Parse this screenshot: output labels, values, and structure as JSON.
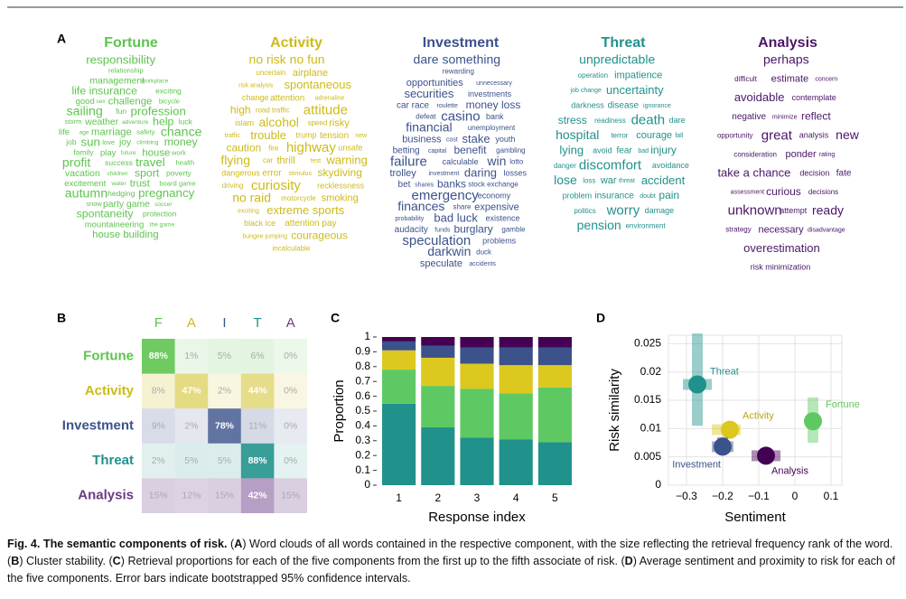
{
  "panel_labels": [
    "A",
    "B",
    "C",
    "D"
  ],
  "word_clouds": [
    {
      "title": "Fortune",
      "color": "#5ec44f",
      "words": [
        "responsibility",
        "relationship",
        "management",
        "workplace",
        "life insurance",
        "exciting",
        "good",
        "sex",
        "challenge",
        "bicycle",
        "sailing",
        "fun",
        "profession",
        "storm",
        "weather",
        "adventure",
        "help",
        "luck",
        "life",
        "age",
        "marriage",
        "safety",
        "chance",
        "job",
        "sun",
        "love",
        "joy",
        "climbing",
        "money",
        "family",
        "play",
        "future",
        "house",
        "work",
        "profit",
        "success",
        "travel",
        "health",
        "vacation",
        "children",
        "sport",
        "poverty",
        "excitement",
        "water",
        "trust",
        "board game",
        "autumn",
        "hedging",
        "pregnancy",
        "snow",
        "party game",
        "soccer",
        "spontaneity",
        "protection",
        "mountaineering",
        "the game",
        "house building"
      ]
    },
    {
      "title": "Activity",
      "color": "#cdbb17",
      "words": [
        "no risk no fun",
        "uncertain",
        "airplane",
        "risk analysis",
        "spontaneous",
        "change",
        "attention",
        "adrenaline",
        "high",
        "road traffic",
        "attitude",
        "islam",
        "alcohol",
        "speed",
        "risky",
        "traffic",
        "trouble",
        "trump",
        "tension",
        "new",
        "caution",
        "fire",
        "highway",
        "unsafe",
        "flying",
        "car",
        "thrill",
        "test",
        "warning",
        "dangerous",
        "error",
        "stimulus",
        "skydiving",
        "driving",
        "curiosity",
        "recklessness",
        "no raid",
        "motorcycle",
        "smoking",
        "exciting",
        "extreme sports",
        "black ice",
        "attention pay",
        "bungee jumping",
        "courageous",
        "incalculable"
      ]
    },
    {
      "title": "Investment",
      "color": "#3b528b",
      "words": [
        "dare something",
        "rewarding",
        "opportunities",
        "unnecessary",
        "securities",
        "investments",
        "car race",
        "roulette",
        "money loss",
        "defeat",
        "casino",
        "bank",
        "financial",
        "unemployment",
        "business",
        "cost",
        "stake",
        "youth",
        "betting",
        "capital",
        "benefit",
        "gambling",
        "failure",
        "calculable",
        "win",
        "lotto",
        "trolley",
        "investment",
        "daring",
        "losses",
        "bet",
        "shares",
        "banks",
        "stock exchange",
        "emergency",
        "economy",
        "finances",
        "share",
        "expensive",
        "probability",
        "bad luck",
        "existence",
        "audacity",
        "funds",
        "burglary",
        "gamble",
        "speculation",
        "problems",
        "darkwin",
        "duck",
        "speculate",
        "accidents"
      ]
    },
    {
      "title": "Threat",
      "color": "#21918c",
      "words": [
        "unpredictable",
        "operation",
        "impatience",
        "job change",
        "uncertainty",
        "darkness",
        "disease",
        "ignorance",
        "stress",
        "readiness",
        "death",
        "dare",
        "hospital",
        "terror",
        "courage",
        "fall",
        "lying",
        "avoid",
        "fear",
        "bad",
        "injury",
        "danger",
        "discomfort",
        "avoidance",
        "lose",
        "loss",
        "war",
        "threat",
        "accident",
        "problem",
        "insurance",
        "doubt",
        "pain",
        "politics",
        "worry",
        "damage",
        "pension",
        "environment"
      ]
    },
    {
      "title": "Analysis",
      "color": "#4b1667",
      "words": [
        "perhaps",
        "difficult",
        "estimate",
        "concern",
        "avoidable",
        "contemplate",
        "negative",
        "minimize",
        "reflect",
        "opportunity",
        "great",
        "analysis",
        "new",
        "consideration",
        "ponder",
        "rating",
        "take a chance",
        "decision",
        "fate",
        "assessment",
        "curious",
        "decisions",
        "unknown",
        "attempt",
        "ready",
        "strategy",
        "necessary",
        "disadvantage",
        "overestimation",
        "risk minimization"
      ]
    }
  ],
  "chart_data": [
    {
      "type": "heatmap",
      "rows": [
        "Fortune",
        "Activity",
        "Investment",
        "Threat",
        "Analysis"
      ],
      "columns": [
        "F",
        "A",
        "I",
        "T",
        "A"
      ],
      "colors": [
        "#5ec44f",
        "#cdbb17",
        "#3b528b",
        "#21918c",
        "#6b3a86"
      ],
      "values": [
        [
          88,
          1,
          5,
          6,
          0
        ],
        [
          8,
          47,
          2,
          44,
          0
        ],
        [
          9,
          2,
          78,
          11,
          0
        ],
        [
          2,
          5,
          5,
          88,
          0
        ],
        [
          15,
          12,
          15,
          42,
          15
        ]
      ],
      "value_labels": [
        [
          "88%",
          "1%",
          "5%",
          "6%",
          "0%"
        ],
        [
          "8%",
          "47%",
          "2%",
          "44%",
          "0%"
        ],
        [
          "9%",
          "2%",
          "78%",
          "11%",
          "0%"
        ],
        [
          "2%",
          "5%",
          "5%",
          "88%",
          "0%"
        ],
        [
          "15%",
          "12%",
          "15%",
          "42%",
          "15%"
        ]
      ]
    },
    {
      "type": "stacked_bar",
      "categories": [
        "1",
        "2",
        "3",
        "4",
        "5"
      ],
      "x_label": "Response index",
      "y_label": "Proportion",
      "ylim": [
        0,
        1
      ],
      "yticks": [
        0,
        0.1,
        0.2,
        0.3,
        0.4,
        0.5,
        0.6,
        0.7,
        0.8,
        0.9,
        1
      ],
      "series": [
        {
          "color": "#21918c",
          "values": [
            0.55,
            0.39,
            0.32,
            0.31,
            0.29
          ]
        },
        {
          "color": "#5ec962",
          "values": [
            0.23,
            0.28,
            0.33,
            0.31,
            0.37
          ]
        },
        {
          "color": "#dcc81e",
          "values": [
            0.13,
            0.19,
            0.17,
            0.19,
            0.15
          ]
        },
        {
          "color": "#3b528b",
          "values": [
            0.06,
            0.08,
            0.11,
            0.12,
            0.12
          ]
        },
        {
          "color": "#440154",
          "values": [
            0.03,
            0.06,
            0.07,
            0.07,
            0.07
          ]
        }
      ]
    },
    {
      "type": "scatter",
      "x_label": "Sentiment",
      "y_label": "Risk similarity",
      "xlim": [
        -0.35,
        0.13
      ],
      "xticks": [
        {
          "value": -0.3,
          "label": "−0.3"
        },
        {
          "value": -0.2,
          "label": "−0.2"
        },
        {
          "value": -0.1,
          "label": "−0.1"
        },
        0,
        0.1
      ],
      "ylim": [
        0,
        0.0265
      ],
      "yticks": [
        0,
        0.005,
        0.01,
        0.015,
        0.02,
        0.025
      ],
      "grid": true,
      "points": [
        {
          "name": "Threat",
          "color": "#21918c",
          "x": -0.27,
          "y": 0.0178,
          "x_low": -0.31,
          "x_high": -0.23,
          "y_low": 0.0105,
          "y_high": 0.0268
        },
        {
          "name": "Fortune",
          "color": "#5ec962",
          "x": 0.05,
          "y": 0.0113,
          "x_low": 0.03,
          "x_high": 0.07,
          "y_low": 0.0075,
          "y_high": 0.0155
        },
        {
          "name": "Activity",
          "color": "#dcc81e",
          "x": -0.18,
          "y": 0.0098,
          "x_low": -0.23,
          "x_high": -0.15,
          "y_low": 0.0085,
          "y_high": 0.011
        },
        {
          "name": "Investment",
          "color": "#3b528b",
          "x": -0.2,
          "y": 0.0068,
          "x_low": -0.23,
          "x_high": -0.17,
          "y_low": 0.0055,
          "y_high": 0.0085
        },
        {
          "name": "Analysis",
          "color": "#440154",
          "x": -0.08,
          "y": 0.0052,
          "x_low": -0.12,
          "x_high": -0.04,
          "y_low": 0.0045,
          "y_high": 0.006
        }
      ]
    }
  ],
  "caption": {
    "parts": [
      {
        "text": "Fig. 4. The semantic components of risk.",
        "bold": true
      },
      {
        "text": " (",
        "bold": false
      },
      {
        "text": "A",
        "bold": true
      },
      {
        "text": ") Word clouds of all words contained in the respective component, with the size reflecting the retrieval frequency rank of the word. (",
        "bold": false
      },
      {
        "text": "B",
        "bold": true
      },
      {
        "text": ") Cluster stability. (",
        "bold": false
      },
      {
        "text": "C",
        "bold": true
      },
      {
        "text": ") Retrieval proportions for each of the five components from the first up to the fifth associate of risk. (",
        "bold": false
      },
      {
        "text": "D",
        "bold": true
      },
      {
        "text": ") Average sentiment and proximity to risk for each of the five components. Error bars indicate bootstrapped 95% confidence intervals.",
        "bold": false
      }
    ]
  }
}
